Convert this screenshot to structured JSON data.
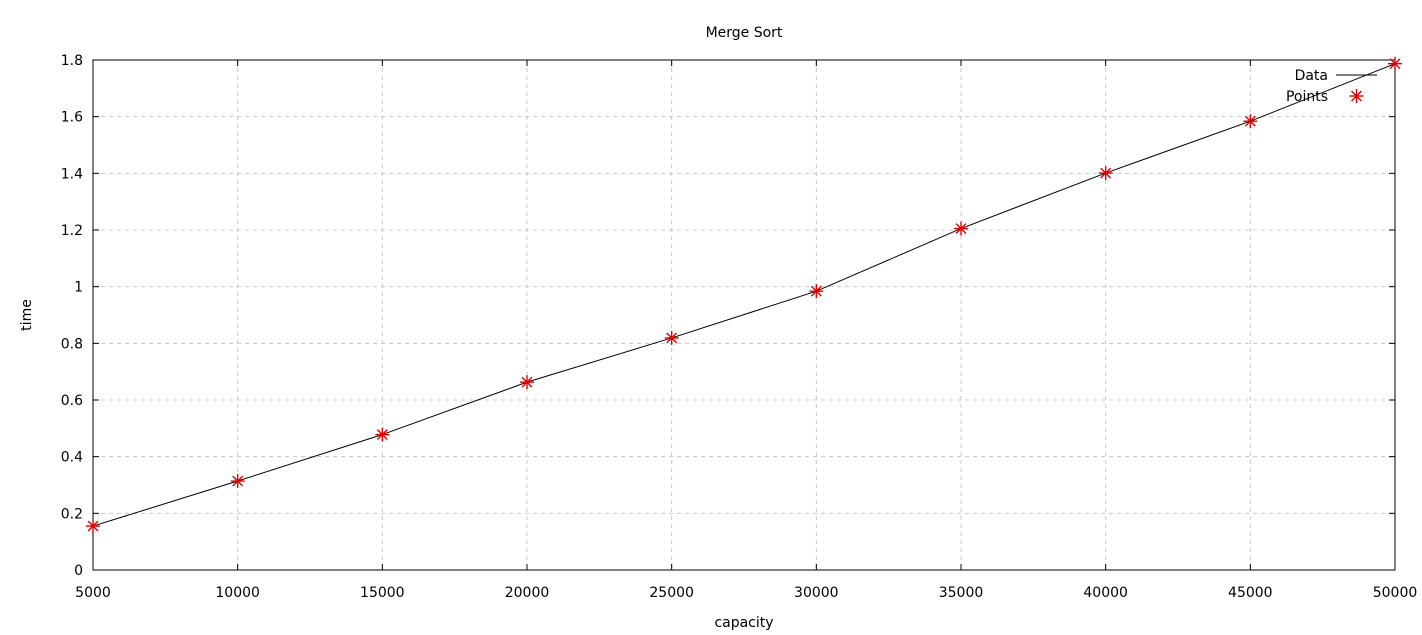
{
  "chart_data": {
    "type": "line",
    "title": "Merge Sort",
    "xlabel": "capacity",
    "ylabel": "time",
    "xlim": [
      5000,
      50000
    ],
    "ylim": [
      0,
      1.8
    ],
    "xticks": [
      "5000",
      "10000",
      "15000",
      "20000",
      "25000",
      "30000",
      "35000",
      "40000",
      "45000",
      "50000"
    ],
    "yticks": [
      "0",
      "0.2",
      "0.4",
      "0.6",
      "0.8",
      "1",
      "1.2",
      "1.4",
      "1.6",
      "1.8"
    ],
    "grid": true,
    "legend_position": "top-right",
    "x": [
      5000,
      10000,
      15000,
      20000,
      25000,
      30000,
      35000,
      40000,
      45000,
      50000
    ],
    "series": [
      {
        "name": "Data",
        "style": "line",
        "color": "#000000",
        "values": [
          0.155,
          0.314,
          0.478,
          0.663,
          0.819,
          0.984,
          1.205,
          1.401,
          1.584,
          1.787
        ]
      },
      {
        "name": "Points",
        "style": "points",
        "marker": "asterisk",
        "color": "#e00000",
        "values": [
          0.155,
          0.314,
          0.478,
          0.663,
          0.819,
          0.984,
          1.205,
          1.401,
          1.584,
          1.787
        ]
      }
    ]
  }
}
